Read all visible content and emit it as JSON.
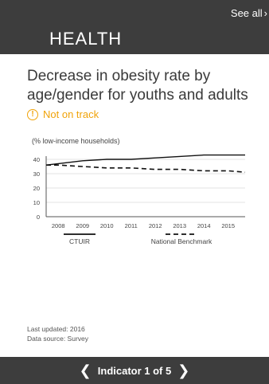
{
  "header": {
    "see_all_label": "See all",
    "title": "HEALTH",
    "chevron_icon": "chevron-right-icon"
  },
  "indicator": {
    "title": "Decrease in obesity rate by age/gender for youths and adults",
    "status_label": "Not on track",
    "status_icon": "exclamation-circle-icon",
    "status_color": "#f0a30a"
  },
  "chart_data": {
    "type": "line",
    "title": "(% low-income households)",
    "categories": [
      "2008",
      "2009",
      "2010",
      "2011",
      "2012",
      "2013",
      "2014",
      "2015"
    ],
    "y_ticks": [
      "40",
      "30",
      "20",
      "10",
      "0"
    ],
    "ylim": [
      0,
      40
    ],
    "grid": true,
    "legend_position": "bottom",
    "series": [
      {
        "name": "CTUIR",
        "style": "solid",
        "x": [
          2007.5,
          2008,
          2009,
          2010,
          2011,
          2012,
          2013,
          2014,
          2015,
          2015.7
        ],
        "values": [
          36,
          37,
          39,
          40,
          40,
          41,
          42,
          43,
          43,
          43
        ]
      },
      {
        "name": "National Benchmark",
        "style": "dashed",
        "x": [
          2007.5,
          2008,
          2009,
          2010,
          2011,
          2012,
          2013,
          2014,
          2015,
          2015.7
        ],
        "values": [
          36,
          36,
          35,
          34,
          34,
          33,
          33,
          32,
          32,
          31
        ]
      }
    ]
  },
  "meta": {
    "last_updated": "Last updated: 2016",
    "data_source": "Data source: Survey"
  },
  "pager": {
    "label": "Indicator 1 of 5",
    "prev_icon": "chevron-left-icon",
    "next_icon": "chevron-right-icon"
  }
}
